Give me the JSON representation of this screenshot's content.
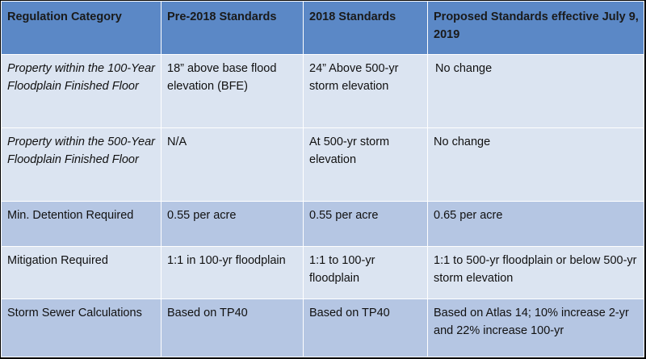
{
  "table": {
    "headers": [
      "Regulation Category",
      "Pre-2018 Standards",
      "2018 Standards",
      "Proposed Standards effective July 9, 2019"
    ],
    "rows": [
      {
        "category": "Property within the 100-Year Floodplain Finished Floor",
        "pre2018": "18” above base flood elevation (BFE)",
        "standards2018": "24” Above 500-yr storm elevation",
        "proposed": "No change"
      },
      {
        "category": "Property within the 500-Year Floodplain Finished Floor",
        "pre2018": "N/A",
        "standards2018": "At 500-yr storm elevation",
        "proposed": "No change"
      },
      {
        "category": "Min. Detention Required",
        "pre2018": "0.55 per acre",
        "standards2018": "0.55 per acre",
        "proposed": "0.65 per acre"
      },
      {
        "category": "Mitigation Required",
        "pre2018": "1:1 in 100-yr floodplain",
        "standards2018": "1:1 to 100-yr floodplain",
        "proposed": "1:1 to 500-yr floodplain or below 500-yr storm elevation"
      },
      {
        "category": "Storm Sewer Calculations",
        "pre2018": "Based on TP40",
        "standards2018": "Based on TP40",
        "proposed": "Based on Atlas 14; 10% increase 2-yr and 22% increase 100-yr"
      }
    ]
  }
}
